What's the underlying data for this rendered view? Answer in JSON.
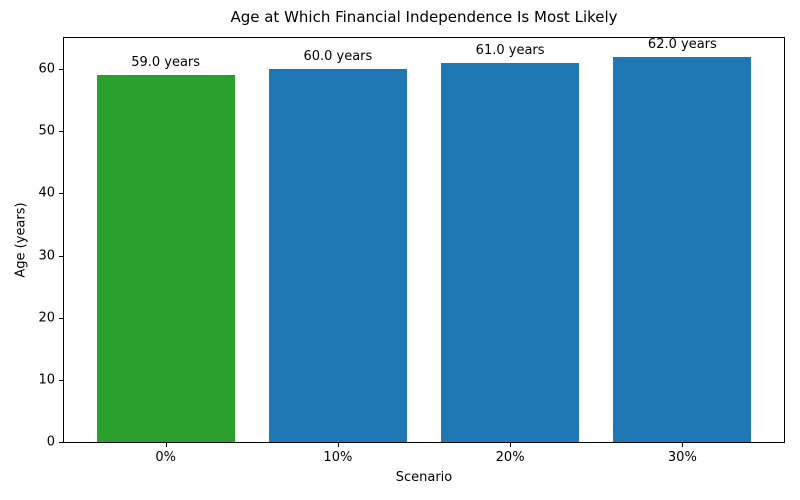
{
  "chart_data": {
    "type": "bar",
    "title": "Age at Which Financial Independence Is Most Likely",
    "xlabel": "Scenario",
    "ylabel": "Age (years)",
    "categories": [
      "0%",
      "10%",
      "20%",
      "30%"
    ],
    "values": [
      59.0,
      60.0,
      61.0,
      62.0
    ],
    "bar_labels": [
      "59.0 years",
      "60.0 years",
      "61.0 years",
      "62.0 years"
    ],
    "bar_colors": [
      "#2ca02c",
      "#1f77b4",
      "#1f77b4",
      "#1f77b4"
    ],
    "highlight_color": "#2ca02c",
    "default_bar_color": "#1f77b4",
    "ylim": [
      0,
      65
    ],
    "yticks": [
      0,
      10,
      20,
      30,
      40,
      50,
      60
    ],
    "xlim": [
      -0.59,
      3.59
    ],
    "bar_width_units": 0.8,
    "grid": false,
    "legend_position": "none"
  }
}
